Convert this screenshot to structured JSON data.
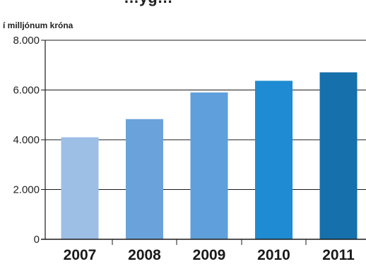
{
  "chart_data": {
    "type": "bar",
    "title": "…yg…",
    "unit_label": "í milljónum króna",
    "categories": [
      "2007",
      "2008",
      "2009",
      "2010",
      "2011"
    ],
    "values": [
      4100,
      4830,
      5900,
      6370,
      6710
    ],
    "ylim": [
      0,
      8000
    ],
    "yticks": [
      0,
      2000,
      4000,
      6000,
      8000
    ],
    "ytick_labels": [
      "0",
      "2.000",
      "4.000",
      "6.000",
      "8.000"
    ],
    "grid": true,
    "bar_colors": [
      "#9dbfe6",
      "#6aa3dc",
      "#5f9fdb",
      "#1f8bd2",
      "#1570ab"
    ]
  }
}
